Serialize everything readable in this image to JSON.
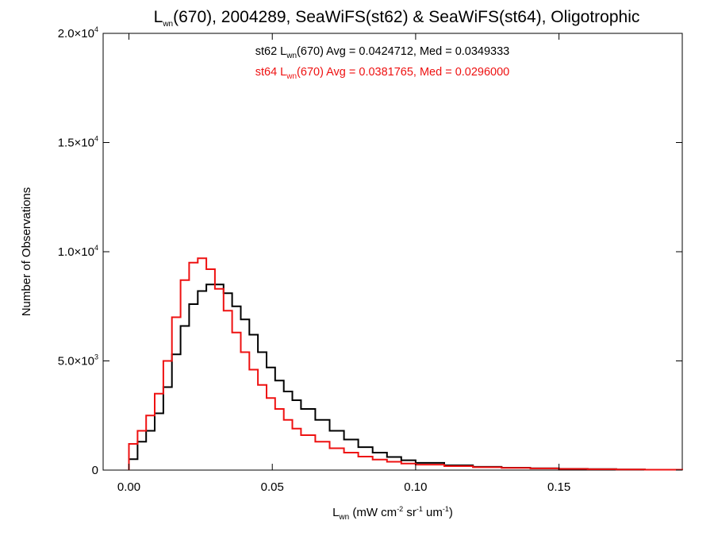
{
  "chart_data": {
    "type": "line",
    "step": true,
    "title": {
      "base": "L",
      "sub": "wn",
      "rest": "(670), 2004289, SeaWiFS(st62) & SeaWiFS(st64), Oligotrophic"
    },
    "xlabel": {
      "base": "L",
      "sub": "wn",
      "p1": " (mW cm",
      "e1": "-2",
      "p2": " sr",
      "e2": "-1",
      "p3": " um",
      "e3": "-1",
      "p4": ")"
    },
    "ylabel": "Number of Observations",
    "xlim": [
      -0.009,
      0.193
    ],
    "ylim": [
      0,
      20000
    ],
    "x_ticks": [
      {
        "v": 0.0,
        "label": "0.00"
      },
      {
        "v": 0.05,
        "label": "0.05"
      },
      {
        "v": 0.1,
        "label": "0.10"
      },
      {
        "v": 0.15,
        "label": "0.15"
      }
    ],
    "y_ticks": [
      {
        "v": 0,
        "label": "0"
      },
      {
        "v": 5000,
        "mant": "5.0",
        "times": "×10",
        "exp": "3"
      },
      {
        "v": 10000,
        "mant": "1.0",
        "times": "×10",
        "exp": "4"
      },
      {
        "v": 15000,
        "mant": "1.5",
        "times": "×10",
        "exp": "4"
      },
      {
        "v": 20000,
        "mant": "2.0",
        "times": "×10",
        "exp": "4"
      }
    ],
    "grid": false,
    "annotations": [
      {
        "pre": "st62 L",
        "sub": "wn",
        "post": "(670) Avg = 0.0424712, Med = 0.0349333",
        "color": "#000000"
      },
      {
        "pre": "st64 L",
        "sub": "wn",
        "post": "(670) Avg = 0.0381765, Med = 0.0296000",
        "color": "#ee1111"
      }
    ],
    "series": [
      {
        "color": "#000000",
        "avg": 0.0424712,
        "median": 0.0349333,
        "x": [
          0.0,
          0.003,
          0.006,
          0.009,
          0.012,
          0.015,
          0.018,
          0.021,
          0.024,
          0.027,
          0.03,
          0.033,
          0.036,
          0.039,
          0.042,
          0.045,
          0.048,
          0.051,
          0.054,
          0.057,
          0.06,
          0.065,
          0.07,
          0.075,
          0.08,
          0.085,
          0.09,
          0.095,
          0.1,
          0.11,
          0.12,
          0.13,
          0.14,
          0.15,
          0.16,
          0.17,
          0.18,
          0.193
        ],
        "y": [
          500,
          1300,
          1800,
          2600,
          3800,
          5300,
          6600,
          7600,
          8200,
          8500,
          8500,
          8100,
          7500,
          6900,
          6200,
          5400,
          4700,
          4100,
          3600,
          3200,
          2800,
          2300,
          1800,
          1400,
          1050,
          800,
          600,
          450,
          330,
          220,
          150,
          110,
          80,
          60,
          45,
          30,
          20,
          12
        ]
      },
      {
        "color": "#ee1111",
        "avg": 0.0381765,
        "median": 0.0296,
        "x": [
          0.0,
          0.003,
          0.006,
          0.009,
          0.012,
          0.015,
          0.018,
          0.021,
          0.024,
          0.027,
          0.03,
          0.033,
          0.036,
          0.039,
          0.042,
          0.045,
          0.048,
          0.051,
          0.054,
          0.057,
          0.06,
          0.065,
          0.07,
          0.075,
          0.08,
          0.085,
          0.09,
          0.095,
          0.1,
          0.11,
          0.12,
          0.13,
          0.14,
          0.15,
          0.16,
          0.17,
          0.18,
          0.193
        ],
        "y": [
          1200,
          1800,
          2500,
          3500,
          5000,
          7000,
          8700,
          9500,
          9700,
          9200,
          8300,
          7300,
          6300,
          5400,
          4600,
          3900,
          3300,
          2800,
          2300,
          1900,
          1600,
          1300,
          1000,
          800,
          620,
          480,
          380,
          300,
          250,
          180,
          130,
          100,
          75,
          55,
          40,
          28,
          18,
          10
        ]
      }
    ]
  }
}
